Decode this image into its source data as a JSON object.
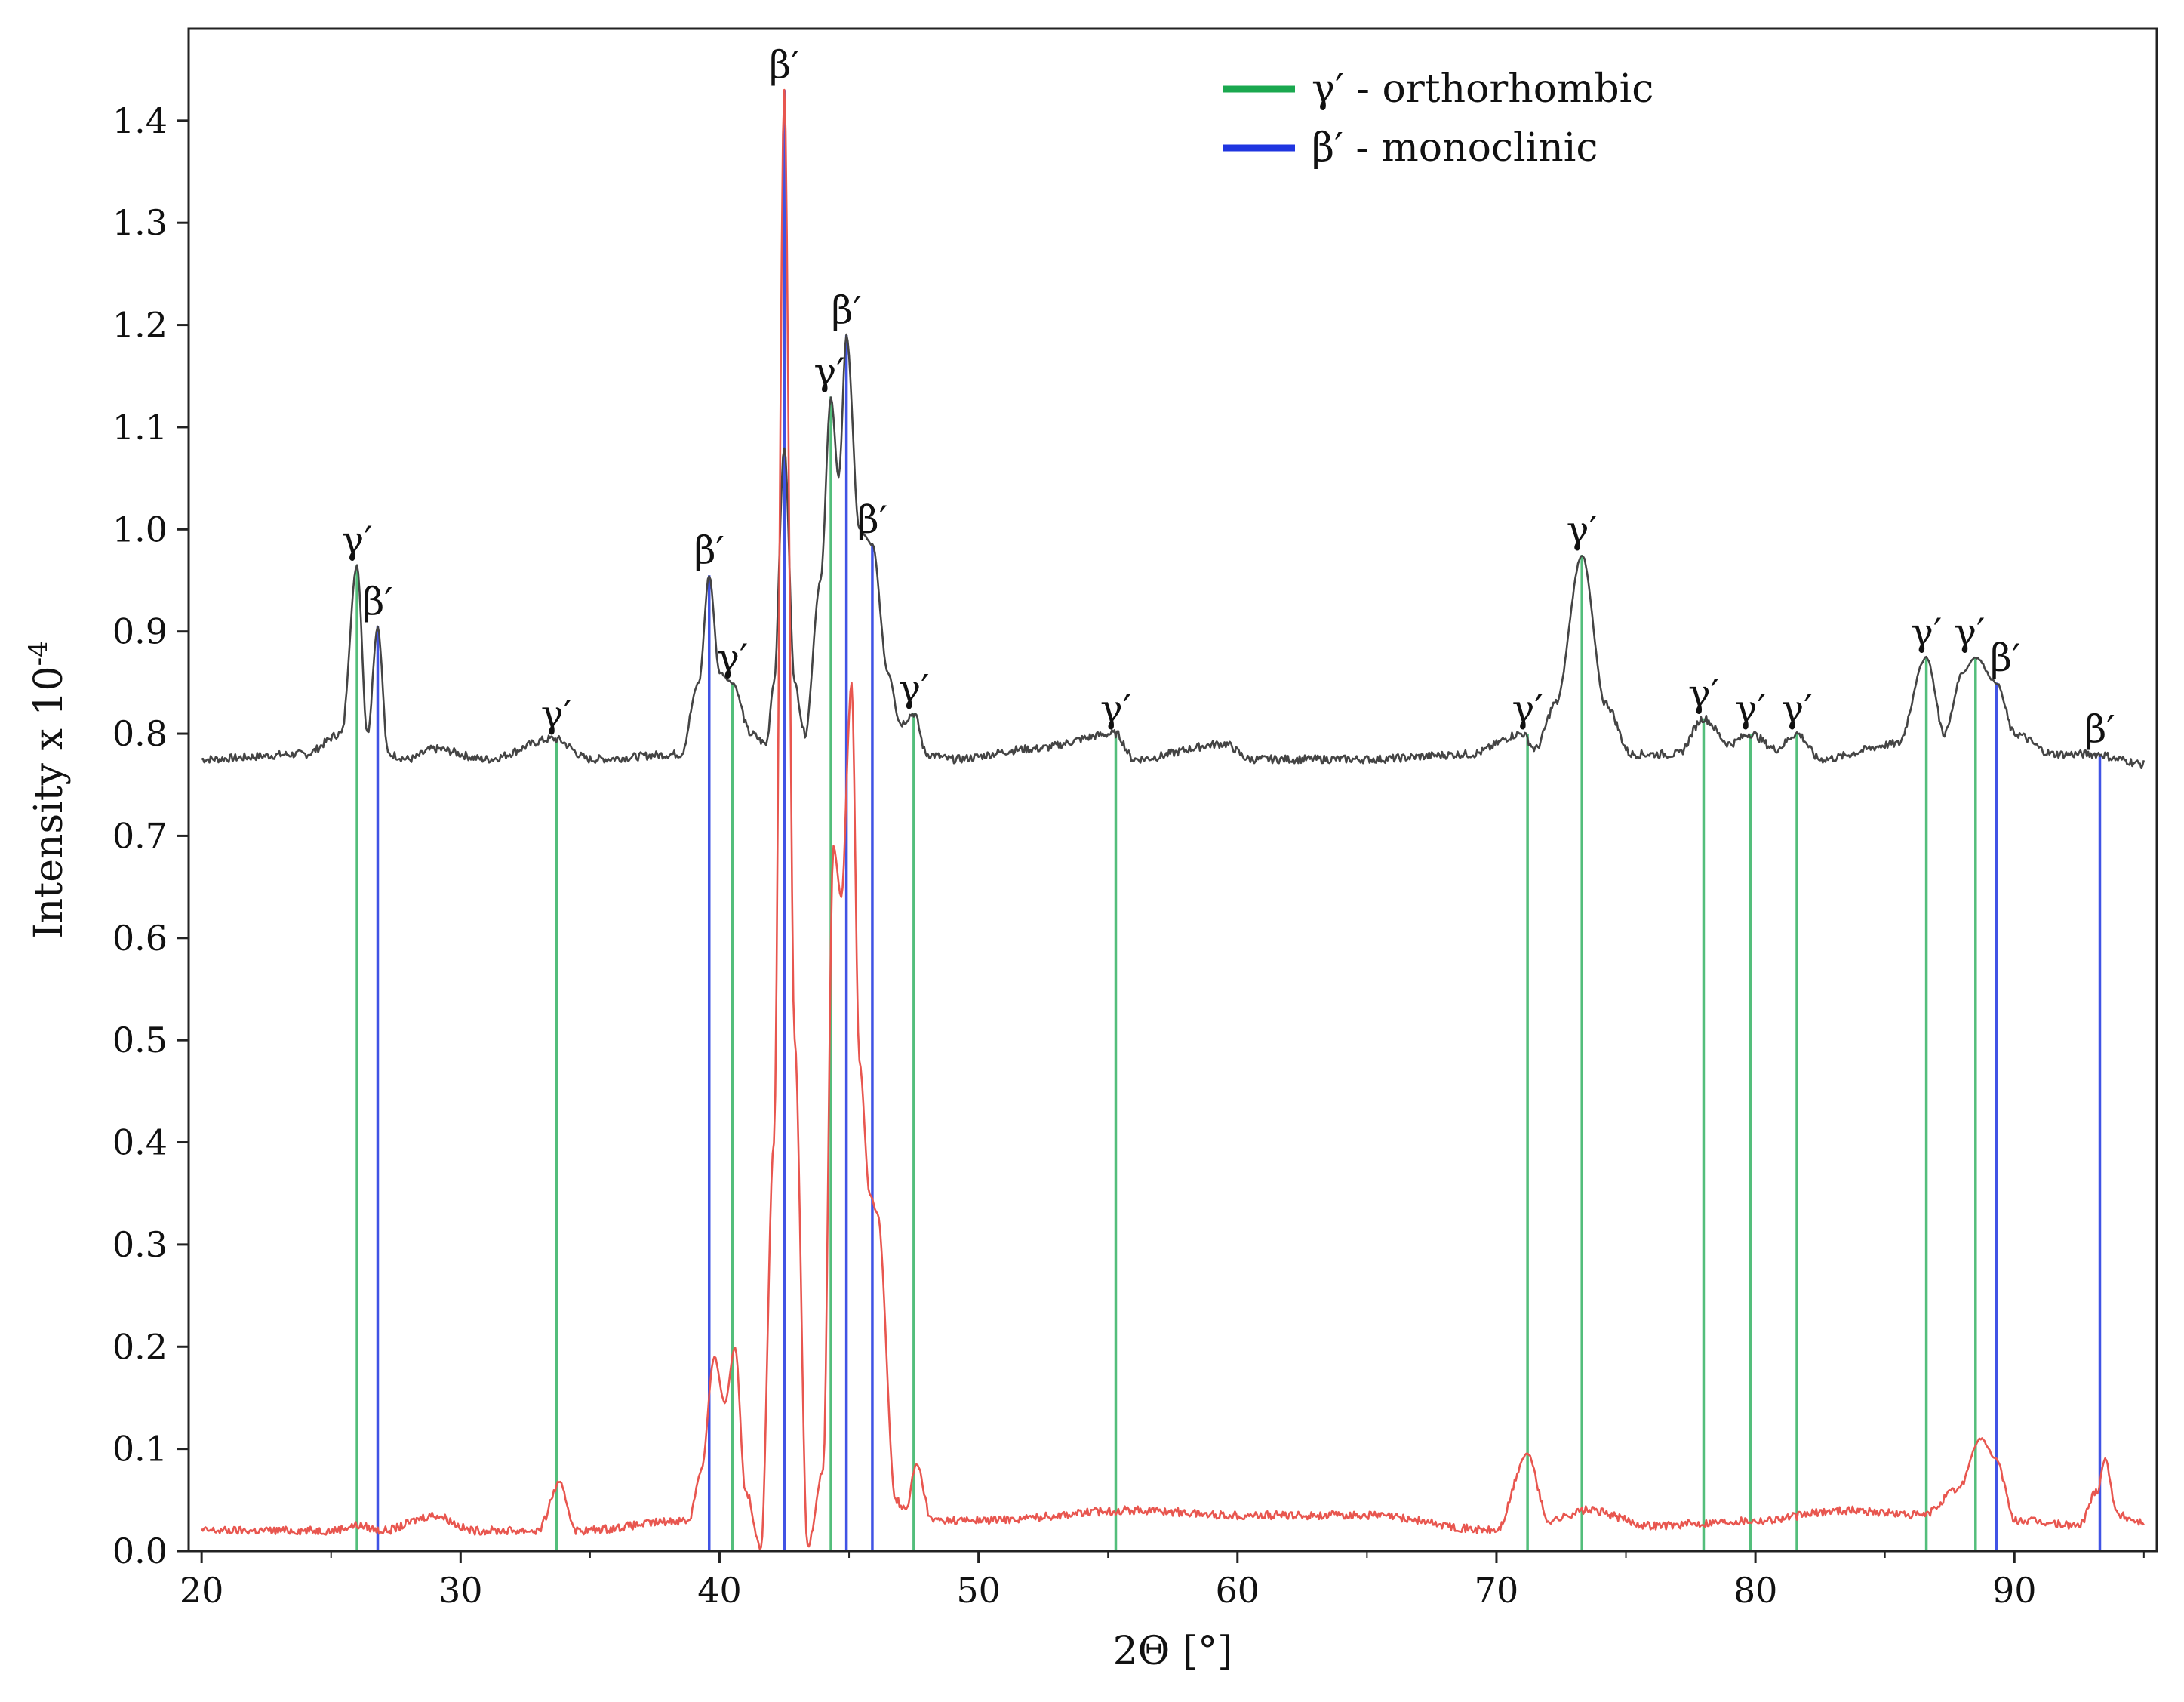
{
  "chart_data": {
    "type": "line",
    "title": "",
    "xlabel": "2Θ [°]",
    "ylabel": "Intensity x 10",
    "ylabel_superscript": "-4",
    "xlim": [
      19.5,
      95.5
    ],
    "ylim": [
      0.0,
      1.49
    ],
    "x_ticks": [
      20,
      30,
      40,
      50,
      60,
      70,
      80,
      90
    ],
    "y_ticks": [
      0.0,
      0.1,
      0.2,
      0.3,
      0.4,
      0.5,
      0.6,
      0.7,
      0.8,
      0.9,
      1.0,
      1.1,
      1.2,
      1.3,
      1.4
    ],
    "y_tick_labels": [
      "0.0",
      "0.1",
      "0.2",
      "0.3",
      "0.4",
      "0.5",
      "0.6",
      "0.7",
      "0.8",
      "0.9",
      "1.0",
      "1.1",
      "1.2",
      "1.3",
      "1.4"
    ],
    "grid": false,
    "legend_position": "top-right",
    "legend": [
      {
        "label": "γ′ - orthorhombic",
        "color": "#1aa84f"
      },
      {
        "label": "β′ - monoclinic",
        "color": "#1f35e0"
      }
    ],
    "series": [
      {
        "color": "#444444",
        "baseline": 0.775,
        "x": [
          20.0,
          24.0,
          25.4,
          26.0,
          26.4,
          26.8,
          27.2,
          28.0,
          29.0,
          31.0,
          33.6,
          35.0,
          38.5,
          39.2,
          39.6,
          40.0,
          40.5,
          41.2,
          41.8,
          42.1,
          42.5,
          42.9,
          43.3,
          43.9,
          44.3,
          44.6,
          44.9,
          45.4,
          45.9,
          46.5,
          47.0,
          47.5,
          48.0,
          49.0,
          52.0,
          55.3,
          56.0,
          59.5,
          60.5,
          65.0,
          69.0,
          71.0,
          71.5,
          72.3,
          73.3,
          74.2,
          75.2,
          77.0,
          78.0,
          79.0,
          79.8,
          80.8,
          81.6,
          82.5,
          85.5,
          86.6,
          87.3,
          88.0,
          88.5,
          89.3,
          90.0,
          91.5,
          93.3,
          94.0,
          95.0
        ],
        "y": [
          0.775,
          0.78,
          0.8,
          0.965,
          0.8,
          0.905,
          0.78,
          0.775,
          0.785,
          0.775,
          0.795,
          0.775,
          0.78,
          0.85,
          0.955,
          0.86,
          0.85,
          0.8,
          0.79,
          0.85,
          1.08,
          0.85,
          0.8,
          0.95,
          1.13,
          1.05,
          1.19,
          1.0,
          0.985,
          0.86,
          0.81,
          0.82,
          0.78,
          0.775,
          0.785,
          0.8,
          0.775,
          0.79,
          0.775,
          0.775,
          0.78,
          0.8,
          0.785,
          0.83,
          0.975,
          0.83,
          0.78,
          0.78,
          0.815,
          0.79,
          0.8,
          0.785,
          0.8,
          0.775,
          0.79,
          0.875,
          0.8,
          0.86,
          0.875,
          0.85,
          0.8,
          0.78,
          0.78,
          0.775,
          0.77
        ]
      },
      {
        "color": "#e8564f",
        "baseline": 0.02,
        "x": [
          20.0,
          25.0,
          26.0,
          27.0,
          29.0,
          30.5,
          33.0,
          33.8,
          34.5,
          38.8,
          39.3,
          39.8,
          40.2,
          40.6,
          41.0,
          41.6,
          42.1,
          42.5,
          42.9,
          43.4,
          44.0,
          44.4,
          44.7,
          45.1,
          45.4,
          45.8,
          46.1,
          46.8,
          47.2,
          47.6,
          48.2,
          50.0,
          56.0,
          60.0,
          65.0,
          70.0,
          71.2,
          72.0,
          73.5,
          76.0,
          80.0,
          83.5,
          86.5,
          87.8,
          88.7,
          89.3,
          90.0,
          92.5,
          93.2,
          93.5,
          94.0,
          95.0
        ],
        "y": [
          0.02,
          0.02,
          0.025,
          0.02,
          0.035,
          0.02,
          0.02,
          0.065,
          0.02,
          0.03,
          0.08,
          0.19,
          0.145,
          0.2,
          0.06,
          0.005,
          0.4,
          1.43,
          0.5,
          0.005,
          0.08,
          0.69,
          0.64,
          0.85,
          0.48,
          0.35,
          0.33,
          0.05,
          0.04,
          0.085,
          0.03,
          0.03,
          0.04,
          0.035,
          0.035,
          0.02,
          0.095,
          0.03,
          0.04,
          0.025,
          0.03,
          0.04,
          0.035,
          0.06,
          0.11,
          0.09,
          0.03,
          0.025,
          0.06,
          0.09,
          0.035,
          0.028
        ]
      }
    ],
    "reference_lines": [
      {
        "x": 26.0,
        "top": 0.965,
        "phase": "gamma",
        "label": "γ′"
      },
      {
        "x": 26.8,
        "top": 0.905,
        "phase": "beta",
        "label": "β′"
      },
      {
        "x": 33.7,
        "top": 0.795,
        "phase": "gamma",
        "label": "γ′"
      },
      {
        "x": 39.6,
        "top": 0.955,
        "phase": "beta",
        "label": "β′"
      },
      {
        "x": 40.5,
        "top": 0.85,
        "phase": "gamma",
        "label": "γ′"
      },
      {
        "x": 42.5,
        "top": 1.43,
        "phase": "beta",
        "label": "β′"
      },
      {
        "x": 44.3,
        "top": 1.13,
        "phase": "gamma",
        "label": "γ′"
      },
      {
        "x": 44.9,
        "top": 1.19,
        "phase": "beta",
        "label": "β′"
      },
      {
        "x": 45.9,
        "top": 0.985,
        "phase": "beta",
        "label": "β′"
      },
      {
        "x": 47.5,
        "top": 0.82,
        "phase": "gamma",
        "label": "γ′"
      },
      {
        "x": 55.3,
        "top": 0.8,
        "phase": "gamma",
        "label": "γ′"
      },
      {
        "x": 71.2,
        "top": 0.8,
        "phase": "gamma",
        "label": "γ′"
      },
      {
        "x": 73.3,
        "top": 0.975,
        "phase": "gamma",
        "label": "γ′"
      },
      {
        "x": 78.0,
        "top": 0.815,
        "phase": "gamma",
        "label": "γ′"
      },
      {
        "x": 79.8,
        "top": 0.8,
        "phase": "gamma",
        "label": "γ′"
      },
      {
        "x": 81.6,
        "top": 0.8,
        "phase": "gamma",
        "label": "γ′"
      },
      {
        "x": 86.6,
        "top": 0.875,
        "phase": "gamma",
        "label": "γ′"
      },
      {
        "x": 88.5,
        "top": 0.875,
        "phase": "gamma",
        "label": "γ′"
      },
      {
        "x": 89.3,
        "top": 0.85,
        "phase": "beta",
        "label": "β′"
      },
      {
        "x": 93.3,
        "top": 0.78,
        "phase": "beta",
        "label": "β′"
      }
    ]
  }
}
